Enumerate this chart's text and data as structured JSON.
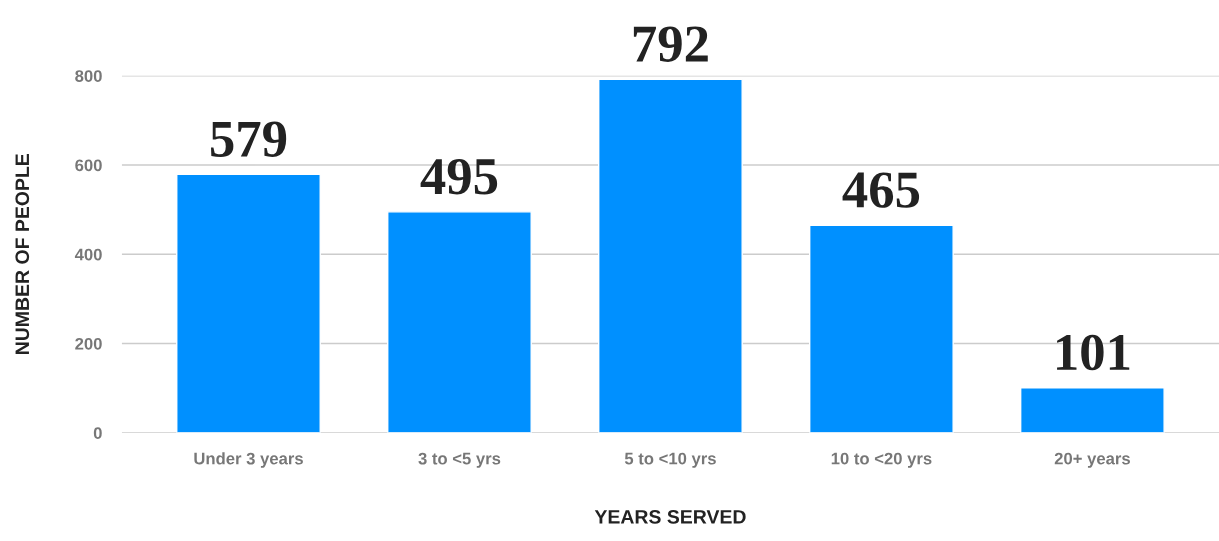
{
  "chart_data": {
    "type": "bar",
    "xlabel": "YEARS SERVED",
    "ylabel": "NUMBER OF PEOPLE",
    "categories": [
      "Under 3 years",
      "3 to <5 yrs",
      "5 to <10 yrs",
      "10 to <20 yrs",
      "20+ years"
    ],
    "values": [
      579,
      495,
      792,
      465,
      101
    ],
    "color": "#0090ff",
    "ylim": [
      0,
      800
    ],
    "yticks": [
      0,
      200,
      400,
      600,
      800
    ],
    "grid": "y",
    "data_labels": true
  }
}
